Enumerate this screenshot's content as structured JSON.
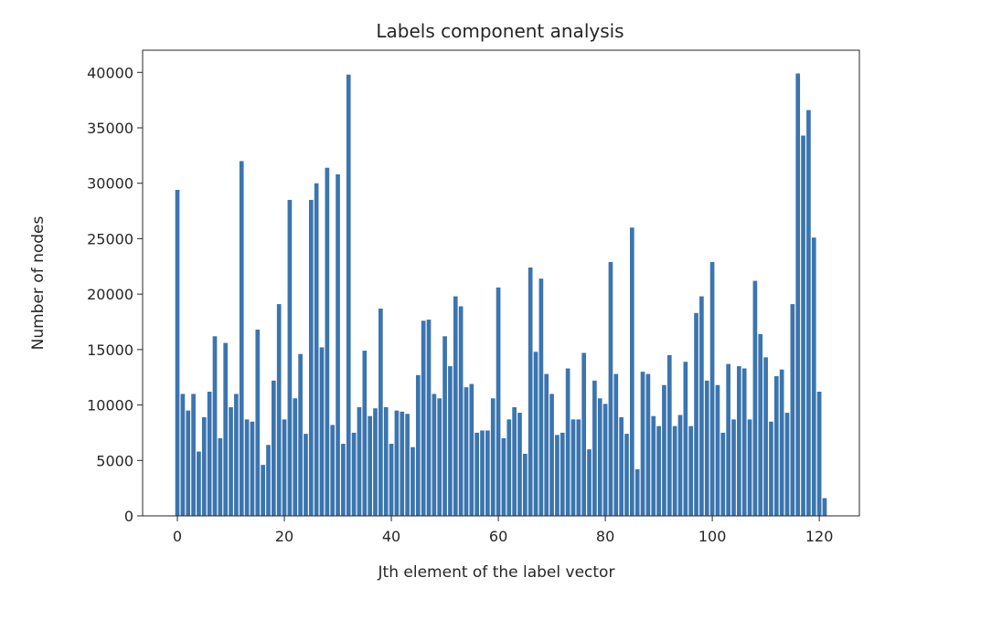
{
  "chart_data": {
    "type": "bar",
    "title": "Labels component analysis",
    "xlabel": "Jth element of the label vector",
    "ylabel": "Number of nodes",
    "xlim": [
      -6.5,
      127.5
    ],
    "ylim": [
      0,
      42000
    ],
    "xticks": [
      0,
      20,
      40,
      60,
      80,
      100,
      120
    ],
    "yticks": [
      0,
      5000,
      10000,
      15000,
      20000,
      25000,
      30000,
      35000,
      40000
    ],
    "grid": false,
    "bar_color": "#3b75af",
    "x": [
      0,
      1,
      2,
      3,
      4,
      5,
      6,
      7,
      8,
      9,
      10,
      11,
      12,
      13,
      14,
      15,
      16,
      17,
      18,
      19,
      20,
      21,
      22,
      23,
      24,
      25,
      26,
      27,
      28,
      29,
      30,
      31,
      32,
      33,
      34,
      35,
      36,
      37,
      38,
      39,
      40,
      41,
      42,
      43,
      44,
      45,
      46,
      47,
      48,
      49,
      50,
      51,
      52,
      53,
      54,
      55,
      56,
      57,
      58,
      59,
      60,
      61,
      62,
      63,
      64,
      65,
      66,
      67,
      68,
      69,
      70,
      71,
      72,
      73,
      74,
      75,
      76,
      77,
      78,
      79,
      80,
      81,
      82,
      83,
      84,
      85,
      86,
      87,
      88,
      89,
      90,
      91,
      92,
      93,
      94,
      95,
      96,
      97,
      98,
      99,
      100,
      101,
      102,
      103,
      104,
      105,
      106,
      107,
      108,
      109,
      110,
      111,
      112,
      113,
      114,
      115,
      116,
      117,
      118,
      119,
      120,
      121
    ],
    "values": [
      29400,
      11000,
      9500,
      11000,
      5800,
      8900,
      11200,
      16200,
      7000,
      15600,
      9800,
      11000,
      32000,
      8700,
      8500,
      16800,
      4600,
      6400,
      12200,
      19100,
      8700,
      28500,
      10600,
      14600,
      7400,
      28500,
      30000,
      15200,
      31400,
      8200,
      30800,
      6500,
      39800,
      7500,
      9800,
      14900,
      9000,
      9700,
      18700,
      9800,
      6500,
      9500,
      9400,
      9200,
      6200,
      12700,
      17600,
      17700,
      11000,
      10600,
      16200,
      13500,
      19800,
      18900,
      11600,
      11900,
      7500,
      7700,
      7700,
      10600,
      20600,
      7000,
      8700,
      9800,
      9300,
      5600,
      22400,
      14800,
      21400,
      12800,
      11000,
      7300,
      7500,
      13300,
      8700,
      8700,
      14700,
      6000,
      12200,
      10600,
      10100,
      22900,
      12800,
      8900,
      7400,
      26000,
      4200,
      13000,
      12800,
      9000,
      8100,
      11800,
      14500,
      8100,
      9100,
      13900,
      8100,
      18300,
      19800,
      12200,
      22900,
      11800,
      7500,
      13700,
      8700,
      13500,
      13300,
      8700,
      21200,
      16400,
      14300,
      8500,
      12600,
      13200,
      9300,
      19100,
      39900,
      34300,
      36600,
      25100,
      11200,
      1600
    ]
  }
}
